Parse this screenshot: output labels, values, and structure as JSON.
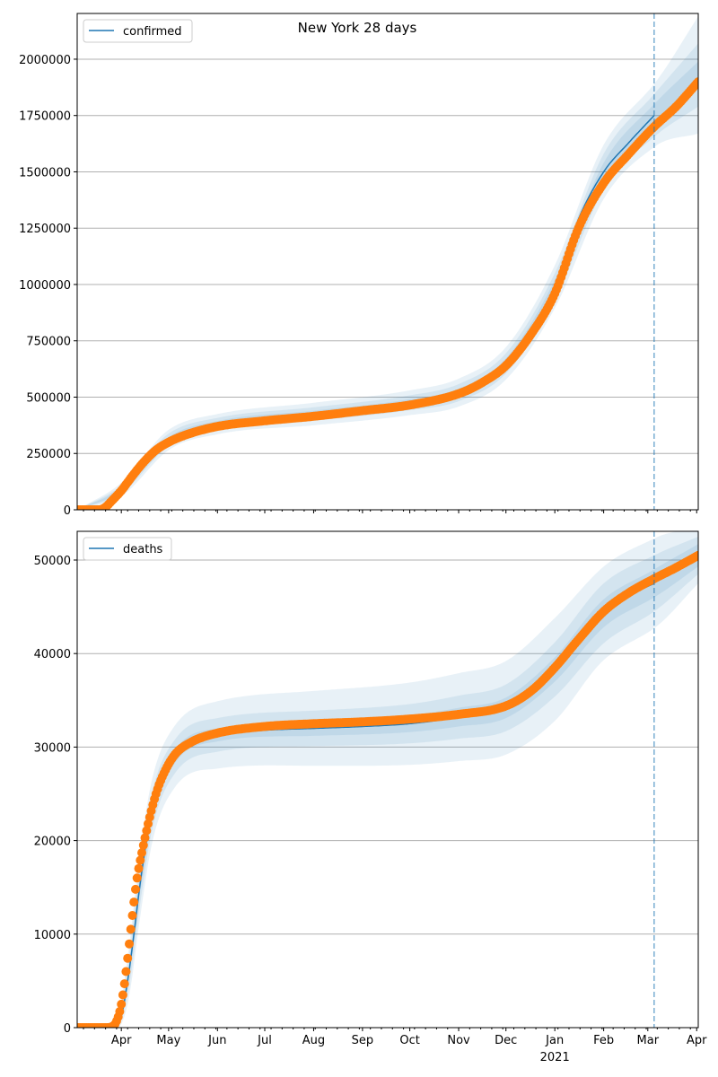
{
  "chart_data": [
    {
      "type": "line",
      "title": "New York 28 days",
      "legend": {
        "label": "confirmed",
        "placement": "top-left"
      },
      "ylim": [
        0,
        2203000
      ],
      "yticks": [
        0,
        250000,
        500000,
        750000,
        1000000,
        1250000,
        1500000,
        1750000,
        2000000
      ],
      "x_unit": "days since 2020-03-04",
      "xlim": [
        0,
        394
      ],
      "forecast_start_day": 366,
      "observed": {
        "days": [
          0,
          14,
          18,
          22,
          28,
          35,
          42,
          50,
          58,
          70,
          89,
          119,
          150,
          181,
          211,
          242,
          257,
          272,
          288,
          303,
          318,
          334,
          350,
          366,
          380,
          394
        ],
        "values": [
          0,
          0,
          12000,
          40000,
          85000,
          150000,
          210000,
          265000,
          300000,
          335000,
          370000,
          395000,
          415000,
          440000,
          465000,
          515000,
          565000,
          640000,
          780000,
          960000,
          1250000,
          1450000,
          1580000,
          1700000,
          1790000,
          1900000
        ]
      },
      "model": {
        "days": [
          0,
          14,
          18,
          22,
          28,
          35,
          42,
          50,
          58,
          70,
          89,
          119,
          150,
          181,
          211,
          242,
          257,
          272,
          288,
          303,
          318,
          334,
          350,
          366
        ],
        "values": [
          0,
          0,
          10000,
          38000,
          90000,
          160000,
          220000,
          275000,
          310000,
          345000,
          380000,
          400000,
          425000,
          448000,
          475000,
          522000,
          575000,
          655000,
          800000,
          990000,
          1290000,
          1500000,
          1630000,
          1750000
        ]
      },
      "bands": {
        "days": [
          0,
          28,
          58,
          89,
          150,
          211,
          242,
          272,
          303,
          334,
          366,
          394
        ],
        "center": [
          0,
          90000,
          310000,
          380000,
          425000,
          475000,
          520000,
          650000,
          990000,
          1500000,
          1750000,
          1930000
        ],
        "half_widths": [
          [
            0,
            8000,
            12000,
            14000,
            15000,
            16000,
            18000,
            22000,
            30000,
            40000,
            50000,
            60000
          ],
          [
            0,
            18000,
            28000,
            28000,
            30000,
            33000,
            38000,
            45000,
            60000,
            80000,
            95000,
            140000
          ],
          [
            0,
            30000,
            45000,
            45000,
            50000,
            55000,
            62000,
            72000,
            95000,
            120000,
            140000,
            260000
          ]
        ]
      }
    },
    {
      "type": "line",
      "title": "",
      "legend": {
        "label": "deaths",
        "placement": "top-left"
      },
      "ylim": [
        0,
        53070
      ],
      "yticks": [
        0,
        10000,
        20000,
        30000,
        40000,
        50000
      ],
      "x_unit": "days since 2020-03-04",
      "xlim": [
        0,
        394
      ],
      "forecast_start_day": 366,
      "xtick_labels": [
        "Apr",
        "May",
        "Jun",
        "Jul",
        "Aug",
        "Sep",
        "Oct",
        "Nov",
        "Dec",
        "Jan",
        "Feb",
        "Mar",
        "Apr"
      ],
      "xtick_days": [
        28,
        58,
        89,
        119,
        150,
        181,
        211,
        242,
        272,
        303,
        334,
        362,
        393
      ],
      "xtick_year_label": "2021",
      "observed": {
        "days": [
          0,
          18,
          22,
          25,
          28,
          31,
          35,
          38,
          42,
          46,
          50,
          55,
          62,
          72,
          89,
          119,
          150,
          181,
          211,
          242,
          272,
          288,
          303,
          318,
          334,
          350,
          366,
          380,
          394
        ],
        "values": [
          0,
          0,
          100,
          700,
          2500,
          6000,
          12000,
          16000,
          19500,
          22500,
          25000,
          27200,
          29200,
          30500,
          31500,
          32200,
          32500,
          32700,
          33000,
          33500,
          34400,
          36000,
          38500,
          41500,
          44500,
          46500,
          48000,
          49200,
          50500
        ]
      },
      "model": {
        "days": [
          0,
          20,
          24,
          28,
          32,
          36,
          40,
          44,
          48,
          55,
          62,
          72,
          89,
          119,
          150,
          181,
          211,
          242,
          272,
          288,
          303,
          318,
          334,
          350,
          366
        ],
        "values": [
          0,
          0,
          200,
          1200,
          5000,
          10000,
          15500,
          20000,
          23500,
          27000,
          29000,
          30300,
          31300,
          31800,
          32000,
          32200,
          32500,
          33200,
          34200,
          35800,
          38300,
          41300,
          44300,
          46200,
          47500
        ]
      },
      "bands": {
        "days": [
          0,
          24,
          32,
          40,
          48,
          62,
          89,
          150,
          211,
          242,
          272,
          303,
          334,
          366,
          394
        ],
        "center": [
          0,
          200,
          5000,
          15500,
          23500,
          29000,
          31300,
          32000,
          32500,
          33200,
          34200,
          38300,
          44300,
          47500,
          50500
        ],
        "half_widths": [
          [
            0,
            100,
            600,
            1000,
            900,
            700,
            700,
            800,
            900,
            1000,
            1100,
            1300,
            1500,
            1500,
            1200
          ],
          [
            0,
            200,
            1500,
            2200,
            2000,
            1800,
            1800,
            1900,
            2100,
            2300,
            2500,
            2900,
            3200,
            3000,
            2000
          ],
          [
            0,
            400,
            2500,
            3600,
            3400,
            3300,
            3600,
            4000,
            4400,
            4700,
            5000,
            5500,
            5000,
            4800,
            3000
          ]
        ]
      }
    }
  ],
  "colors": {
    "model": "#1f77b4",
    "observed": "#ff7f0e",
    "band": "#1f77b4",
    "grid": "#b0b0b0",
    "forecast_line": "#1f77b4"
  }
}
